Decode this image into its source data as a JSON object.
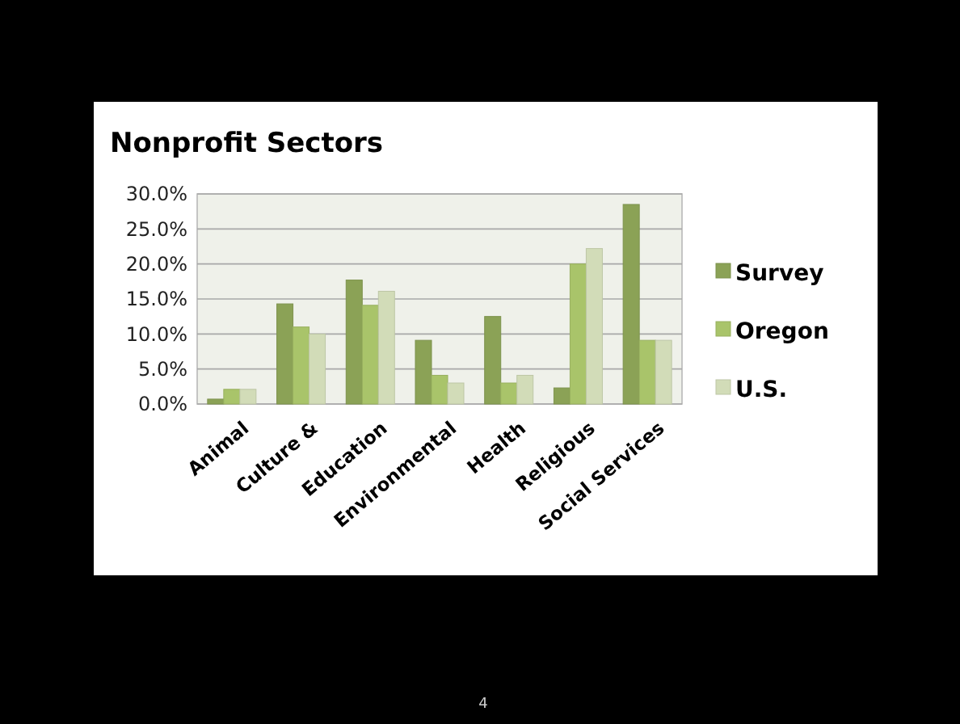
{
  "chart_data": {
    "type": "bar",
    "title": "Nonprofit Sectors",
    "categories": [
      "Animal",
      "Culture &",
      "Education",
      "Environmental",
      "Health",
      "Religious",
      "Social Services"
    ],
    "series": [
      {
        "name": "Survey",
        "color": "#8ba256",
        "values": [
          0.7,
          14.3,
          17.7,
          9.1,
          12.5,
          2.3,
          28.5
        ]
      },
      {
        "name": "Oregon",
        "color": "#a9c46a",
        "values": [
          2.1,
          11,
          14.1,
          4.1,
          3,
          20,
          9.1
        ]
      },
      {
        "name": "U.S.",
        "color": "#d2dcb8",
        "values": [
          2.1,
          10,
          16.1,
          3,
          4.1,
          22.2,
          9.1
        ]
      }
    ],
    "ylim": [
      0,
      30
    ],
    "yticks": [
      {
        "value": 0,
        "label": "0.0%"
      },
      {
        "value": 5,
        "label": "5.0%"
      },
      {
        "value": 10,
        "label": "10.0%"
      },
      {
        "value": 15,
        "label": "15.0%"
      },
      {
        "value": 20,
        "label": "20.0%"
      },
      {
        "value": 25,
        "label": "25.0%"
      },
      {
        "value": 30,
        "label": "30.0%"
      }
    ],
    "grid": "y",
    "legend": "right",
    "annotations": [
      "4"
    ]
  }
}
